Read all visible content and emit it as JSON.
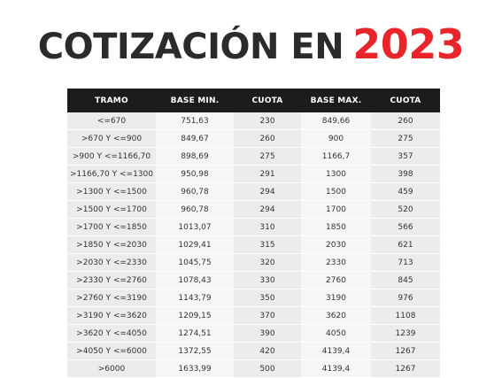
{
  "title": {
    "main": "COTIZACIÓN EN",
    "year": "2023",
    "colors": {
      "main": "#2b2b2b",
      "year": "#e8252b"
    }
  },
  "table": {
    "headers": [
      "TRAMO",
      "BASE MIN.",
      "CUOTA",
      "BASE MAX.",
      "CUOTA"
    ],
    "rows": [
      [
        "<=670",
        "751,63",
        "230",
        "849,66",
        "260"
      ],
      [
        ">670 Y <=900",
        "849,67",
        "260",
        "900",
        "275"
      ],
      [
        ">900 Y <=1166,70",
        "898,69",
        "275",
        "1166,7",
        "357"
      ],
      [
        ">1166,70 Y <=1300",
        "950,98",
        "291",
        "1300",
        "398"
      ],
      [
        ">1300 Y <=1500",
        "960,78",
        "294",
        "1500",
        "459"
      ],
      [
        ">1500 Y <=1700",
        "960,78",
        "294",
        "1700",
        "520"
      ],
      [
        ">1700 Y <=1850",
        "1013,07",
        "310",
        "1850",
        "566"
      ],
      [
        ">1850 Y <=2030",
        "1029,41",
        "315",
        "2030",
        "621"
      ],
      [
        ">2030 Y <=2330",
        "1045,75",
        "320",
        "2330",
        "713"
      ],
      [
        ">2330 Y <=2760",
        "1078,43",
        "330",
        "2760",
        "845"
      ],
      [
        ">2760 Y <=3190",
        "1143,79",
        "350",
        "3190",
        "976"
      ],
      [
        ">3190 Y <=3620",
        "1209,15",
        "370",
        "3620",
        "1108"
      ],
      [
        ">3620 Y <=4050",
        "1274,51",
        "390",
        "4050",
        "1239"
      ],
      [
        ">4050 Y <=6000",
        "1372,55",
        "420",
        "4139,4",
        "1267"
      ],
      [
        ">6000",
        "1633,99",
        "500",
        "4139,4",
        "1267"
      ]
    ],
    "colors": {
      "header_bg": "#1c1c1c",
      "header_text": "#ffffff",
      "row_bg_a": "#ececec",
      "row_bg_b": "#f6f6f6"
    }
  }
}
